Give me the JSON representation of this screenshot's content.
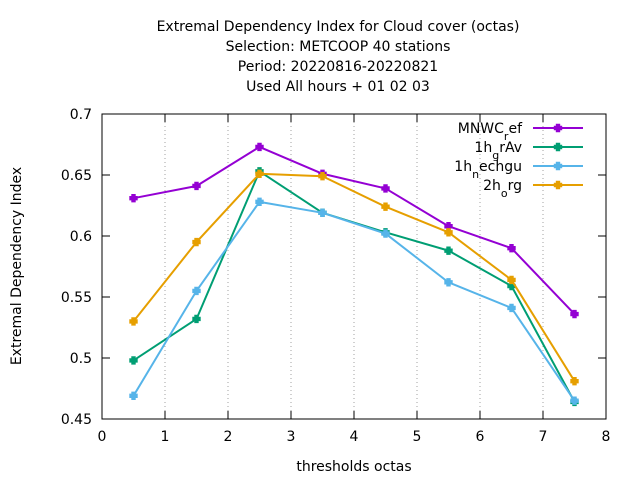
{
  "chart_data": {
    "type": "line",
    "title_lines": [
      "Extremal Dependency Index  for Cloud cover (octas)",
      "Selection: METCOOP     40 stations",
      "Period: 20220816-20220821",
      "Used  All hours  + 01 02 03"
    ],
    "xlabel": "thresholds octas",
    "ylabel": "Extremal Dependency Index",
    "xlim": [
      0,
      8
    ],
    "ylim": [
      0.45,
      0.7
    ],
    "xticks": [
      0,
      1,
      2,
      3,
      4,
      5,
      6,
      7,
      8
    ],
    "yticks": [
      0.45,
      0.5,
      0.55,
      0.6,
      0.65,
      0.7
    ],
    "ytick_labels": [
      "0.45",
      "0.5",
      "0.55",
      "0.6",
      "0.65",
      "0.7"
    ],
    "grid": "dotted vertical at x 1-7",
    "legend_position": "top-right",
    "x": [
      0.5,
      1.5,
      2.5,
      3.5,
      4.5,
      5.5,
      6.5,
      7.5
    ],
    "series": [
      {
        "name_base": "MNWC",
        "name_sub": "r",
        "name_rest": "ef",
        "color": "#9400d3",
        "values": [
          0.631,
          0.641,
          0.673,
          0.651,
          0.639,
          0.608,
          0.59,
          0.536
        ]
      },
      {
        "name_base": "1h",
        "name_sub": "g",
        "name_rest": "rAv",
        "color": "#009e73",
        "values": [
          0.498,
          0.532,
          0.653,
          0.619,
          0.603,
          0.588,
          0.559,
          0.464
        ]
      },
      {
        "name_base": "1h",
        "name_sub": "n",
        "name_rest": "echgu",
        "color": "#56b4e9",
        "values": [
          0.469,
          0.555,
          0.628,
          0.619,
          0.602,
          0.562,
          0.541,
          0.465
        ]
      },
      {
        "name_base": "2h",
        "name_sub": "o",
        "name_rest": "rg",
        "color": "#e69f00",
        "values": [
          0.53,
          0.595,
          0.651,
          0.649,
          0.624,
          0.603,
          0.564,
          0.481
        ]
      }
    ]
  }
}
